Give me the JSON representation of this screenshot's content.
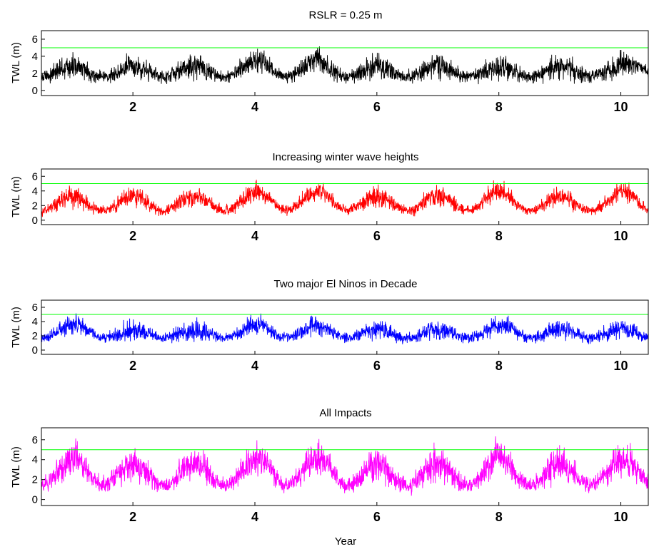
{
  "chart_data": [
    {
      "type": "line",
      "title": "RSLR = 0.25 m",
      "xlabel": "",
      "ylabel": "TWL (m)",
      "xlim": [
        0.5,
        10.45
      ],
      "ylim": [
        -0.6,
        7.0
      ],
      "xticks": [
        "2",
        "4",
        "6",
        "8",
        "10"
      ],
      "yticks": [
        "0",
        "2",
        "4",
        "6"
      ],
      "threshold": 5.0,
      "series_color": "#000000",
      "threshold_color": "#00ff00",
      "signal": {
        "base": 2.2,
        "seasonal_amplitude": 0.6,
        "noise_amplitude": 1.6,
        "peak_years": [
          4.1,
          5.0,
          10.3
        ]
      }
    },
    {
      "type": "line",
      "title": "Increasing winter wave heights",
      "xlabel": "",
      "ylabel": "TWL (m)",
      "xlim": [
        0.5,
        10.45
      ],
      "ylim": [
        -0.6,
        7.0
      ],
      "xticks": [
        "2",
        "4",
        "6",
        "8",
        "10"
      ],
      "yticks": [
        "0",
        "2",
        "4",
        "6"
      ],
      "threshold": 5.0,
      "series_color": "#ff0000",
      "threshold_color": "#00ff00",
      "signal": {
        "base": 2.3,
        "seasonal_amplitude": 1.0,
        "noise_amplitude": 1.5,
        "peak_years": [
          4.1,
          5.1,
          8.0,
          10.1
        ]
      }
    },
    {
      "type": "line",
      "title": "Two major El Ninos in Decade",
      "xlabel": "",
      "ylabel": "TWL (m)",
      "xlim": [
        0.5,
        10.45
      ],
      "ylim": [
        -0.6,
        7.0
      ],
      "xticks": [
        "2",
        "4",
        "6",
        "8",
        "10"
      ],
      "yticks": [
        "0",
        "2",
        "4",
        "6"
      ],
      "threshold": 5.0,
      "series_color": "#0000ff",
      "threshold_color": "#00ff00",
      "signal": {
        "base": 2.3,
        "seasonal_amplitude": 0.6,
        "noise_amplitude": 1.5,
        "peak_years": [
          1.1,
          4.1,
          5.0,
          8.1
        ]
      }
    },
    {
      "type": "line",
      "title": "All Impacts",
      "xlabel": "Year",
      "ylabel": "TWL (m)",
      "xlim": [
        0.5,
        10.45
      ],
      "ylim": [
        -0.6,
        7.2
      ],
      "xticks": [
        "2",
        "4",
        "6",
        "8",
        "10"
      ],
      "yticks": [
        "0",
        "2",
        "4",
        "6"
      ],
      "threshold": 5.0,
      "series_color": "#ff00ff",
      "threshold_color": "#00ff00",
      "signal": {
        "base": 2.5,
        "seasonal_amplitude": 1.1,
        "noise_amplitude": 1.8,
        "peak_years": [
          1.1,
          4.1,
          5.1,
          8.0,
          10.2
        ]
      }
    }
  ]
}
